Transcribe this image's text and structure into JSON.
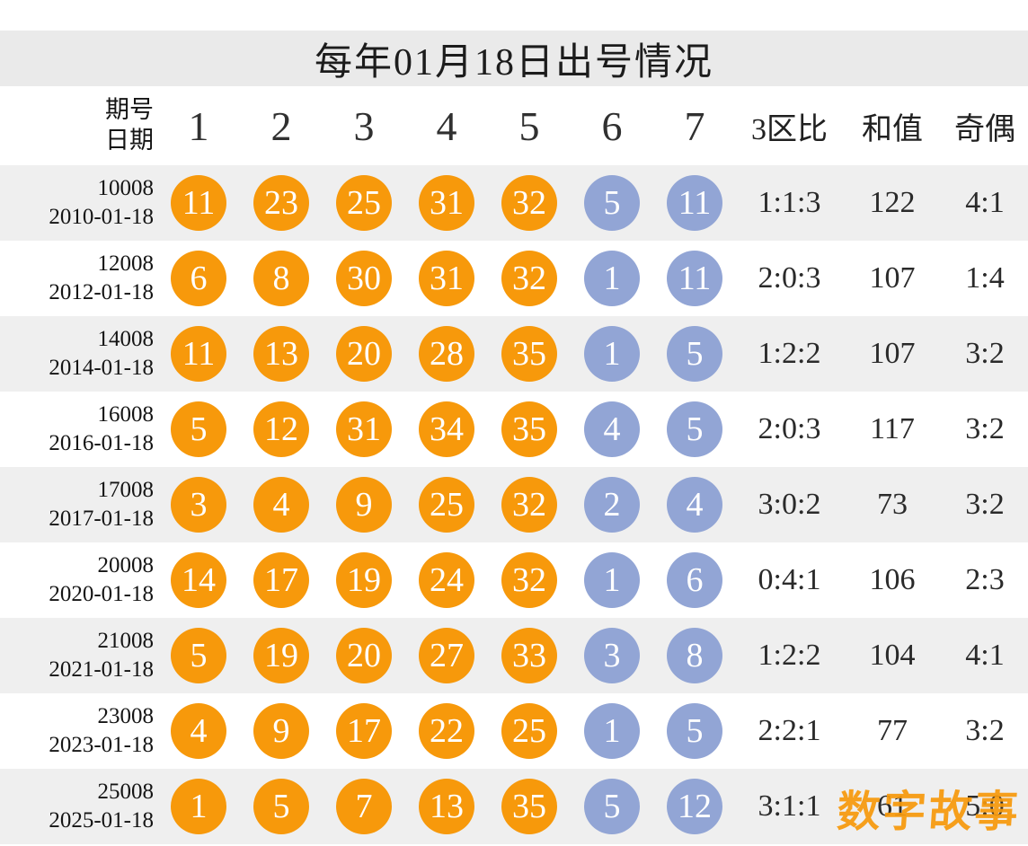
{
  "title": "每年01月18日出号情况",
  "header": {
    "period_label": "期号",
    "date_label": "日期",
    "ball_columns": [
      "1",
      "2",
      "3",
      "4",
      "5",
      "6",
      "7"
    ],
    "zone_ratio_label": "3区比",
    "sum_label": "和值",
    "odd_even_label": "奇偶"
  },
  "rows": [
    {
      "period": "10008",
      "date": "2010-01-18",
      "front": [
        "11",
        "23",
        "25",
        "31",
        "32"
      ],
      "back": [
        "5",
        "11"
      ],
      "zone_ratio": "1:1:3",
      "sum": "122",
      "odd_even": "4:1"
    },
    {
      "period": "12008",
      "date": "2012-01-18",
      "front": [
        "6",
        "8",
        "30",
        "31",
        "32"
      ],
      "back": [
        "1",
        "11"
      ],
      "zone_ratio": "2:0:3",
      "sum": "107",
      "odd_even": "1:4"
    },
    {
      "period": "14008",
      "date": "2014-01-18",
      "front": [
        "11",
        "13",
        "20",
        "28",
        "35"
      ],
      "back": [
        "1",
        "5"
      ],
      "zone_ratio": "1:2:2",
      "sum": "107",
      "odd_even": "3:2"
    },
    {
      "period": "16008",
      "date": "2016-01-18",
      "front": [
        "5",
        "12",
        "31",
        "34",
        "35"
      ],
      "back": [
        "4",
        "5"
      ],
      "zone_ratio": "2:0:3",
      "sum": "117",
      "odd_even": "3:2"
    },
    {
      "period": "17008",
      "date": "2017-01-18",
      "front": [
        "3",
        "4",
        "9",
        "25",
        "32"
      ],
      "back": [
        "2",
        "4"
      ],
      "zone_ratio": "3:0:2",
      "sum": "73",
      "odd_even": "3:2"
    },
    {
      "period": "20008",
      "date": "2020-01-18",
      "front": [
        "14",
        "17",
        "19",
        "24",
        "32"
      ],
      "back": [
        "1",
        "6"
      ],
      "zone_ratio": "0:4:1",
      "sum": "106",
      "odd_even": "2:3"
    },
    {
      "period": "21008",
      "date": "2021-01-18",
      "front": [
        "5",
        "19",
        "20",
        "27",
        "33"
      ],
      "back": [
        "3",
        "8"
      ],
      "zone_ratio": "1:2:2",
      "sum": "104",
      "odd_even": "4:1"
    },
    {
      "period": "23008",
      "date": "2023-01-18",
      "front": [
        "4",
        "9",
        "17",
        "22",
        "25"
      ],
      "back": [
        "1",
        "5"
      ],
      "zone_ratio": "2:2:1",
      "sum": "77",
      "odd_even": "3:2"
    },
    {
      "period": "25008",
      "date": "2025-01-18",
      "front": [
        "1",
        "5",
        "7",
        "13",
        "35"
      ],
      "back": [
        "5",
        "12"
      ],
      "zone_ratio": "3:1:1",
      "sum": "61",
      "odd_even": "5:0"
    }
  ],
  "watermark": "数字故事",
  "colors": {
    "front_ball": "#F7990B",
    "back_ball": "#92A5D5",
    "title_band_bg": "#EAEAEA",
    "stripe_row_bg": "#EFEFEF"
  },
  "chart_data": {
    "type": "table",
    "title": "每年01月18日出号情况",
    "columns": [
      "期号",
      "日期",
      "1",
      "2",
      "3",
      "4",
      "5",
      "6",
      "7",
      "3区比",
      "和值",
      "奇偶"
    ],
    "rows": [
      [
        "10008",
        "2010-01-18",
        11,
        23,
        25,
        31,
        32,
        5,
        11,
        "1:1:3",
        122,
        "4:1"
      ],
      [
        "12008",
        "2012-01-18",
        6,
        8,
        30,
        31,
        32,
        1,
        11,
        "2:0:3",
        107,
        "1:4"
      ],
      [
        "14008",
        "2014-01-18",
        11,
        13,
        20,
        28,
        35,
        1,
        5,
        "1:2:2",
        107,
        "3:2"
      ],
      [
        "16008",
        "2016-01-18",
        5,
        12,
        31,
        34,
        35,
        4,
        5,
        "2:0:3",
        117,
        "3:2"
      ],
      [
        "17008",
        "2017-01-18",
        3,
        4,
        9,
        25,
        32,
        2,
        4,
        "3:0:2",
        73,
        "3:2"
      ],
      [
        "20008",
        "2020-01-18",
        14,
        17,
        19,
        24,
        32,
        1,
        6,
        "0:4:1",
        106,
        "2:3"
      ],
      [
        "21008",
        "2021-01-18",
        5,
        19,
        20,
        27,
        33,
        3,
        8,
        "1:2:2",
        104,
        "4:1"
      ],
      [
        "23008",
        "2023-01-18",
        4,
        9,
        17,
        22,
        25,
        1,
        5,
        "2:2:1",
        77,
        "3:2"
      ],
      [
        "25008",
        "2025-01-18",
        1,
        5,
        7,
        13,
        35,
        5,
        12,
        "3:1:1",
        61,
        "5:0"
      ]
    ],
    "notes": "Columns 1-5 are orange front-zone balls, columns 6-7 are blue back-zone balls. Last row sum and odd-even values are partially obscured by the orange watermark in the source image."
  }
}
